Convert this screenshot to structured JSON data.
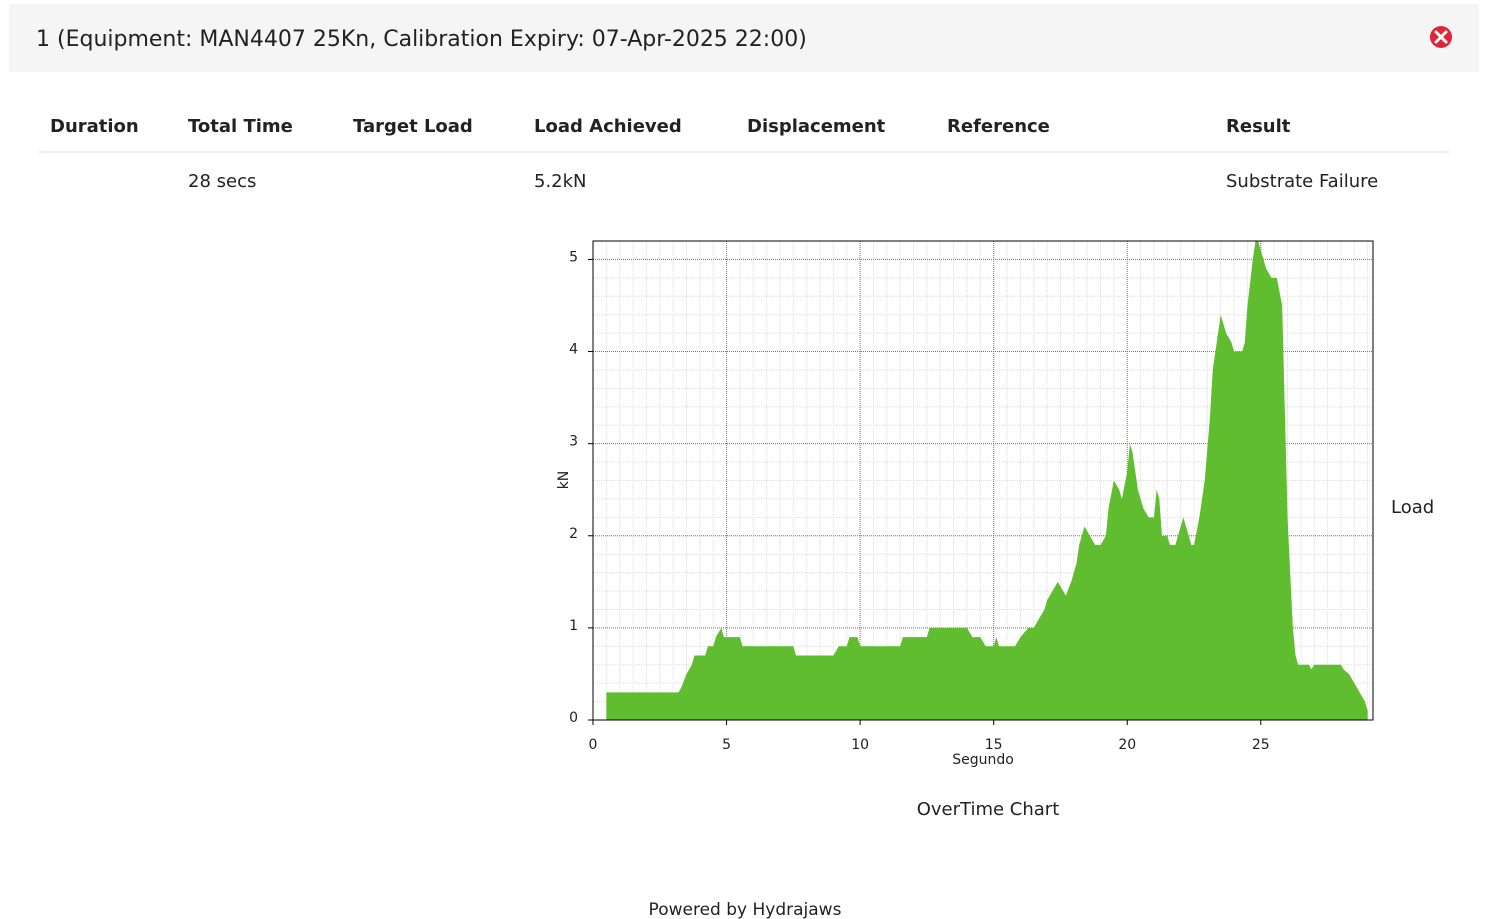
{
  "header": {
    "title": "1 (Equipment: MAN4407 25Kn, Calibration Expiry: 07-Apr-2025 22:00)"
  },
  "table": {
    "headers": [
      "Duration",
      "Total Time",
      "Target Load",
      "Load Achieved",
      "Displacement",
      "Reference",
      "Result"
    ],
    "rows": [
      [
        null,
        "28 secs",
        null,
        "5.2kN",
        null,
        null,
        "Substrate Failure"
      ]
    ]
  },
  "chart_data": {
    "type": "area",
    "caption": "OverTime Chart",
    "x_label": "Segundo",
    "y_label": "kN",
    "xlim": [
      0,
      29.2
    ],
    "ylim": [
      0,
      5.2
    ],
    "xticks": [
      0,
      5,
      10,
      15,
      20,
      25
    ],
    "yticks": [
      0,
      1,
      2,
      3,
      4,
      5
    ],
    "grid": true,
    "minor_grid": {
      "x": 0.5,
      "y": 0.2
    },
    "legend": "right",
    "x": [
      0.5,
      3.2,
      3.3,
      3.5,
      3.7,
      3.8,
      4.2,
      4.3,
      4.5,
      4.6,
      4.8,
      4.9,
      5.5,
      5.6,
      7.5,
      7.6,
      9.0,
      9.2,
      9.5,
      9.6,
      9.9,
      10.0,
      11.5,
      11.6,
      12.5,
      12.6,
      14.0,
      14.2,
      14.5,
      14.7,
      15.0,
      15.1,
      15.2,
      15.8,
      16.0,
      16.3,
      16.5,
      16.7,
      16.9,
      17.0,
      17.2,
      17.4,
      17.6,
      17.7,
      17.9,
      18.1,
      18.2,
      18.4,
      18.6,
      18.8,
      19.0,
      19.2,
      19.3,
      19.5,
      19.7,
      19.8,
      20.0,
      20.1,
      20.2,
      20.4,
      20.6,
      20.8,
      21.0,
      21.1,
      21.2,
      21.3,
      21.5,
      21.6,
      21.8,
      22.0,
      22.1,
      22.3,
      22.4,
      22.5,
      22.7,
      22.9,
      23.1,
      23.2,
      23.4,
      23.5,
      23.7,
      23.9,
      24.0,
      24.3,
      24.4,
      24.5,
      24.7,
      24.8,
      24.9,
      25.0,
      25.2,
      25.4,
      25.6,
      25.8,
      26.0,
      26.1,
      26.2,
      26.3,
      26.4,
      26.8,
      26.9,
      27.0,
      28.0,
      28.1,
      28.3,
      28.4,
      28.6,
      28.8,
      28.9,
      29.0
    ],
    "series": [
      {
        "name": "Load",
        "color": "#5fbd2f",
        "values": [
          0.3,
          0.3,
          0.35,
          0.5,
          0.6,
          0.7,
          0.7,
          0.8,
          0.8,
          0.9,
          1.0,
          0.9,
          0.9,
          0.8,
          0.8,
          0.7,
          0.7,
          0.8,
          0.8,
          0.9,
          0.9,
          0.8,
          0.8,
          0.9,
          0.9,
          1.0,
          1.0,
          0.9,
          0.9,
          0.8,
          0.8,
          0.9,
          0.8,
          0.8,
          0.9,
          1.0,
          1.0,
          1.1,
          1.2,
          1.3,
          1.4,
          1.5,
          1.4,
          1.35,
          1.5,
          1.7,
          1.9,
          2.1,
          2.0,
          1.9,
          1.9,
          2.0,
          2.3,
          2.6,
          2.5,
          2.4,
          2.7,
          3.0,
          2.9,
          2.5,
          2.3,
          2.2,
          2.2,
          2.5,
          2.4,
          2.0,
          2.0,
          1.9,
          1.9,
          2.1,
          2.2,
          2.0,
          1.9,
          1.9,
          2.2,
          2.6,
          3.3,
          3.8,
          4.2,
          4.4,
          4.2,
          4.1,
          4.0,
          4.0,
          4.1,
          4.5,
          5.0,
          5.2,
          5.2,
          5.1,
          4.9,
          4.8,
          4.8,
          4.5,
          2.2,
          1.6,
          1.0,
          0.7,
          0.6,
          0.6,
          0.55,
          0.6,
          0.6,
          0.55,
          0.5,
          0.45,
          0.35,
          0.25,
          0.2,
          0.1
        ]
      }
    ]
  },
  "footer": {
    "text": "Powered by Hydrajaws"
  }
}
